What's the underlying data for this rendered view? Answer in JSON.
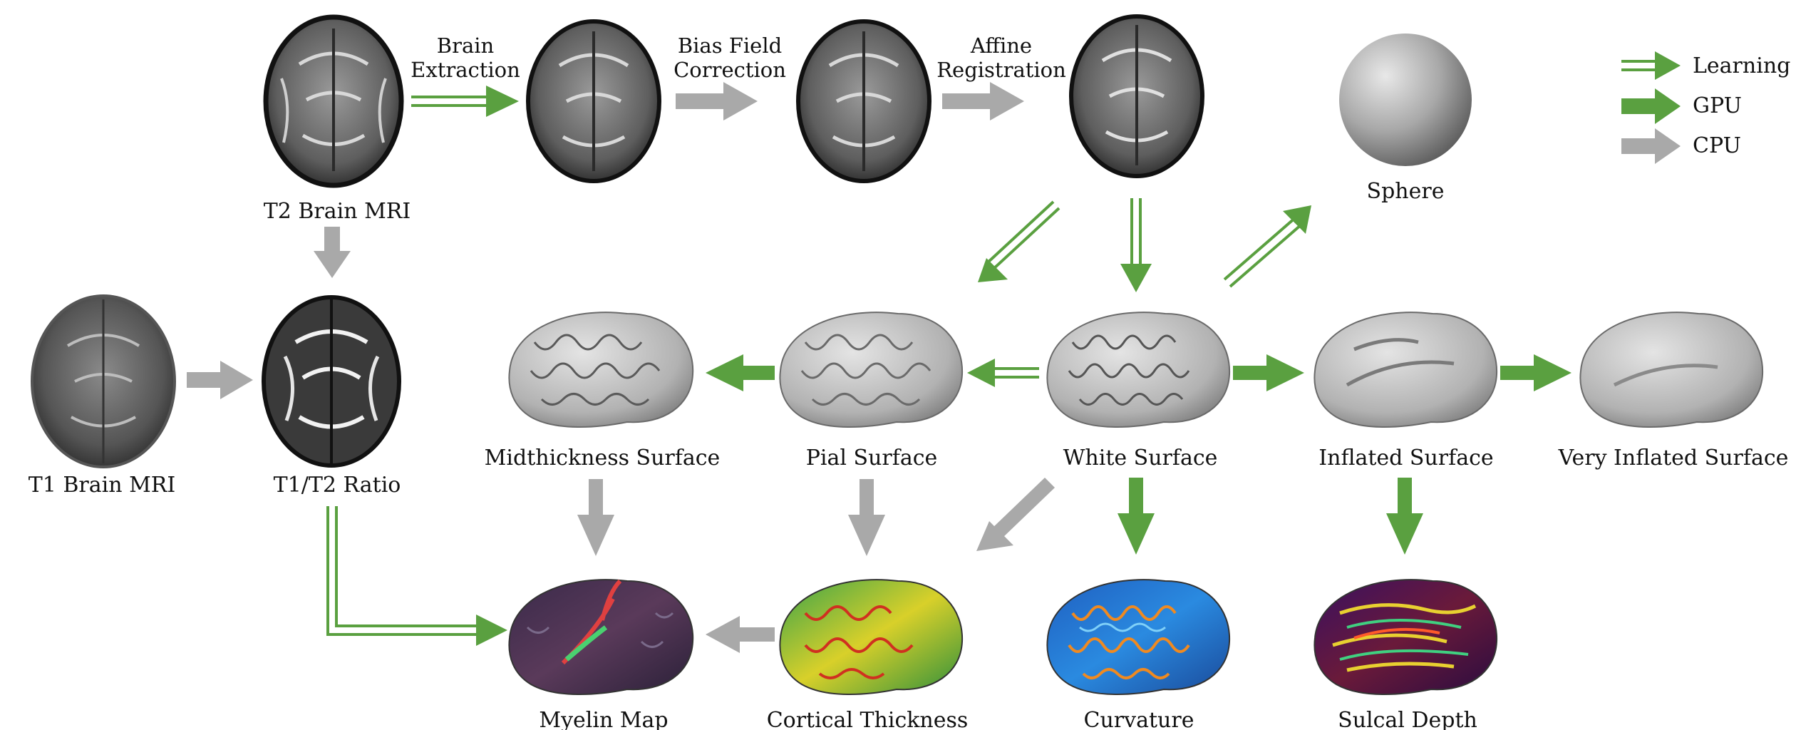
{
  "legend": {
    "learning": "Learning",
    "gpu": "GPU",
    "cpu": "CPU"
  },
  "colors": {
    "learning": "#5aa040",
    "gpu": "#5aa040",
    "cpu": "#a9a9a9",
    "text": "#111111"
  },
  "steps": {
    "brain_extraction": [
      "Brain",
      "Extraction"
    ],
    "bias_field_correction": [
      "Bias Field",
      "Correction"
    ],
    "affine_registration": [
      "Affine",
      "Registration"
    ]
  },
  "nodes": {
    "t2_mri": "T2 Brain MRI",
    "t1_mri": "T1 Brain MRI",
    "t1t2_ratio": "T1/T2 Ratio",
    "sphere": "Sphere",
    "midthickness": "Midthickness Surface",
    "pial": "Pial Surface",
    "white": "White Surface",
    "inflated": "Inflated Surface",
    "very_inflated": "Very Inflated Surface",
    "myelin": "Myelin Map",
    "thickness": "Cortical Thickness",
    "curvature": "Curvature",
    "sulcal_depth": "Sulcal Depth"
  }
}
